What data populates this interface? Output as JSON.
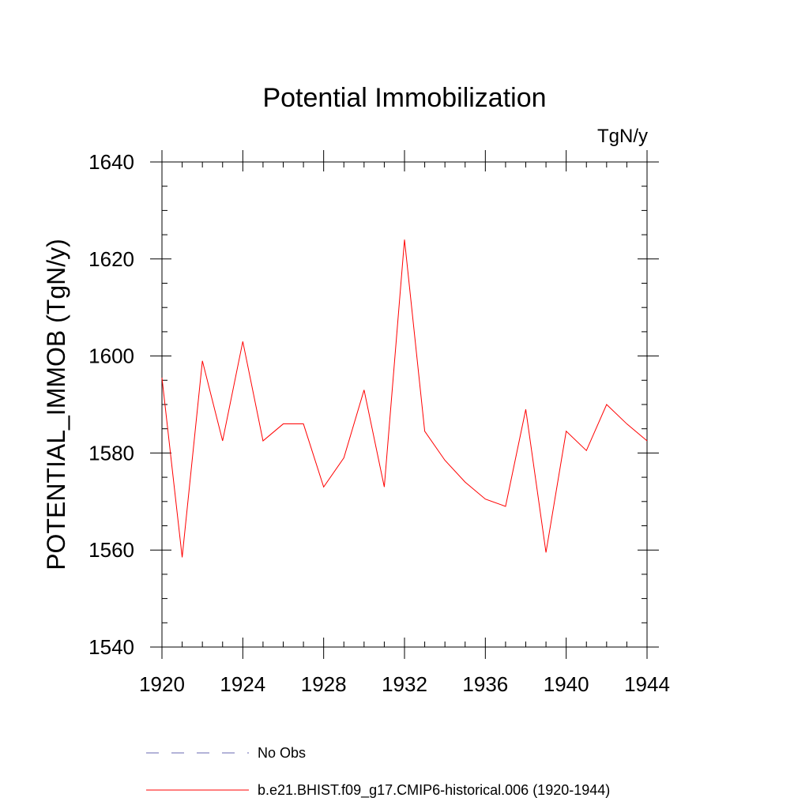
{
  "chart_data": {
    "type": "line",
    "title": "Potential Immobilization",
    "units_label": "TgN/y",
    "ylabel": "POTENTIAL_IMMOB  (TgN/y)",
    "xlabel": "",
    "xlim": [
      1920,
      1944
    ],
    "ylim": [
      1540,
      1640
    ],
    "x_ticks": [
      1920,
      1924,
      1928,
      1932,
      1936,
      1940,
      1944
    ],
    "y_ticks": [
      1540,
      1560,
      1580,
      1600,
      1620,
      1640
    ],
    "x_minor_step": 1,
    "y_minor_step": 5,
    "grid": false,
    "legend_position": "bottom",
    "x": [
      1920,
      1921,
      1922,
      1923,
      1924,
      1925,
      1926,
      1927,
      1928,
      1929,
      1930,
      1931,
      1932,
      1933,
      1934,
      1935,
      1936,
      1937,
      1938,
      1939,
      1940,
      1941,
      1942,
      1943,
      1944
    ],
    "series": [
      {
        "name": "b.e21.BHIST.f09_g17.CMIP6-historical.006 (1920-1944)",
        "color": "#ff0000",
        "style": "solid",
        "values": [
          1595.5,
          1558.5,
          1599,
          1582.5,
          1603,
          1582.5,
          1586,
          1586,
          1573,
          1579,
          1593,
          1573,
          1624,
          1584.5,
          1578.5,
          1574,
          1570.5,
          1569,
          1589,
          1559.5,
          1584.5,
          1580.5,
          1590,
          1586,
          1582.5
        ]
      }
    ],
    "legend": [
      {
        "label": "No Obs",
        "color": "#6a6ab0",
        "style": "dashed"
      },
      {
        "label": "b.e21.BHIST.f09_g17.CMIP6-historical.006 (1920-1944)",
        "color": "#ff0000",
        "style": "solid"
      }
    ]
  }
}
